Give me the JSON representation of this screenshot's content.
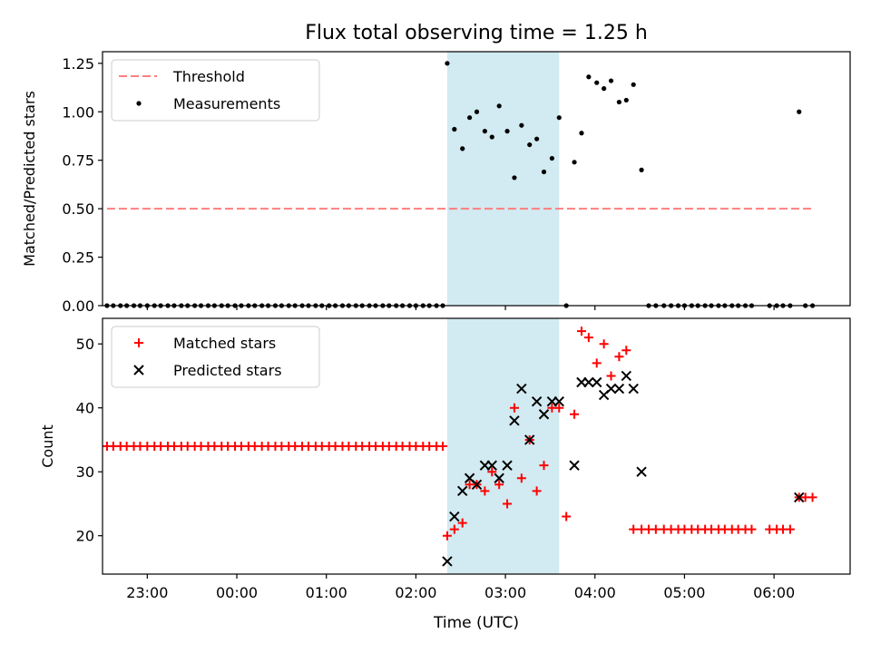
{
  "figure": {
    "title": "Flux total observing time = 1.25 h",
    "xlabel": "Time (UTC)",
    "xlim": [
      -1.5,
      6.85
    ],
    "xticks": [
      {
        "value": -1,
        "label": "23:00"
      },
      {
        "value": 0,
        "label": "00:00"
      },
      {
        "value": 1,
        "label": "01:00"
      },
      {
        "value": 2,
        "label": "02:00"
      },
      {
        "value": 3,
        "label": "03:00"
      },
      {
        "value": 4,
        "label": "04:00"
      },
      {
        "value": 5,
        "label": "05:00"
      },
      {
        "value": 6,
        "label": "06:00"
      }
    ],
    "observing_window": {
      "start": 2.35,
      "end": 3.6,
      "color": "#add8e6"
    }
  },
  "chart_data": [
    {
      "type": "scatter",
      "ylabel": "Matched/Predicted stars",
      "ylim": [
        0,
        1.31
      ],
      "yticks": [
        "0.00",
        "0.25",
        "0.50",
        "0.75",
        "1.00",
        "1.25"
      ],
      "legend_position": "top-left",
      "threshold": {
        "name": "Threshold",
        "value": 0.5,
        "x_range": [
          -1.45,
          6.45
        ],
        "color": "#ff7f7f"
      },
      "series": [
        {
          "name": "Measurements",
          "color": "#000000",
          "x": [
            -1.45,
            -1.38,
            -1.3,
            -1.23,
            -1.15,
            -1.08,
            -1.0,
            -0.92,
            -0.85,
            -0.77,
            -0.7,
            -0.62,
            -0.55,
            -0.47,
            -0.4,
            -0.32,
            -0.25,
            -0.17,
            -0.1,
            -0.02,
            0.05,
            0.13,
            0.2,
            0.28,
            0.35,
            0.43,
            0.5,
            0.58,
            0.65,
            0.73,
            0.8,
            0.88,
            0.95,
            1.03,
            1.1,
            1.18,
            1.25,
            1.33,
            1.4,
            1.48,
            1.55,
            1.63,
            1.7,
            1.78,
            1.85,
            1.93,
            2.0,
            2.08,
            2.15,
            2.23,
            2.3,
            2.35,
            2.43,
            2.52,
            2.6,
            2.68,
            2.77,
            2.85,
            2.93,
            3.02,
            3.1,
            3.18,
            3.27,
            3.35,
            3.43,
            3.52,
            3.6,
            3.68,
            3.77,
            3.85,
            3.93,
            4.02,
            4.1,
            4.18,
            4.27,
            4.35,
            4.43,
            4.52,
            4.6,
            4.68,
            4.77,
            4.85,
            4.93,
            5.0,
            5.08,
            5.15,
            5.23,
            5.3,
            5.38,
            5.45,
            5.53,
            5.6,
            5.68,
            5.75,
            5.95,
            6.03,
            6.1,
            6.18,
            6.28,
            6.35,
            6.43
          ],
          "y": [
            0,
            0,
            0,
            0,
            0,
            0,
            0,
            0,
            0,
            0,
            0,
            0,
            0,
            0,
            0,
            0,
            0,
            0,
            0,
            0,
            0,
            0,
            0,
            0,
            0,
            0,
            0,
            0,
            0,
            0,
            0,
            0,
            0,
            0,
            0,
            0,
            0,
            0,
            0,
            0,
            0,
            0,
            0,
            0,
            0,
            0,
            0,
            0,
            0,
            0,
            0,
            1.25,
            0.91,
            0.81,
            0.97,
            1.0,
            0.9,
            0.87,
            1.03,
            0.9,
            0.66,
            0.93,
            0.83,
            0.86,
            0.69,
            0.76,
            0.97,
            0,
            0.74,
            0.89,
            1.18,
            1.15,
            1.12,
            1.16,
            1.05,
            1.06,
            1.14,
            0.7,
            0,
            0,
            0,
            0,
            0,
            0,
            0,
            0,
            0,
            0,
            0,
            0,
            0,
            0,
            0,
            0,
            0,
            0,
            0,
            0,
            1.0,
            0,
            0
          ]
        }
      ]
    },
    {
      "type": "scatter",
      "ylabel": "Count",
      "ylim": [
        14,
        54
      ],
      "yticks": [
        "20",
        "30",
        "40",
        "50"
      ],
      "legend_position": "top-left",
      "series": [
        {
          "name": "Matched stars",
          "marker": "plus",
          "color": "#ff0000",
          "x": [
            -1.45,
            -1.38,
            -1.3,
            -1.23,
            -1.15,
            -1.08,
            -1.0,
            -0.92,
            -0.85,
            -0.77,
            -0.7,
            -0.62,
            -0.55,
            -0.47,
            -0.4,
            -0.32,
            -0.25,
            -0.17,
            -0.1,
            -0.02,
            0.05,
            0.13,
            0.2,
            0.28,
            0.35,
            0.43,
            0.5,
            0.58,
            0.65,
            0.73,
            0.8,
            0.88,
            0.95,
            1.03,
            1.1,
            1.18,
            1.25,
            1.33,
            1.4,
            1.48,
            1.55,
            1.63,
            1.7,
            1.78,
            1.85,
            1.93,
            2.0,
            2.08,
            2.15,
            2.23,
            2.3,
            2.35,
            2.43,
            2.52,
            2.6,
            2.68,
            2.77,
            2.85,
            2.93,
            3.02,
            3.1,
            3.18,
            3.27,
            3.35,
            3.43,
            3.52,
            3.6,
            3.68,
            3.77,
            3.85,
            3.93,
            4.02,
            4.1,
            4.18,
            4.27,
            4.35,
            4.43,
            4.52,
            4.6,
            4.68,
            4.77,
            4.85,
            4.93,
            5.0,
            5.08,
            5.15,
            5.23,
            5.3,
            5.38,
            5.45,
            5.53,
            5.6,
            5.68,
            5.75,
            5.95,
            6.03,
            6.1,
            6.18,
            6.28,
            6.35,
            6.43
          ],
          "y": [
            34,
            34,
            34,
            34,
            34,
            34,
            34,
            34,
            34,
            34,
            34,
            34,
            34,
            34,
            34,
            34,
            34,
            34,
            34,
            34,
            34,
            34,
            34,
            34,
            34,
            34,
            34,
            34,
            34,
            34,
            34,
            34,
            34,
            34,
            34,
            34,
            34,
            34,
            34,
            34,
            34,
            34,
            34,
            34,
            34,
            34,
            34,
            34,
            34,
            34,
            34,
            20,
            21,
            22,
            28,
            28,
            27,
            30,
            28,
            25,
            40,
            29,
            35,
            27,
            31,
            40,
            40,
            23,
            39,
            52,
            51,
            47,
            50,
            45,
            48,
            49,
            21,
            21,
            21,
            21,
            21,
            21,
            21,
            21,
            21,
            21,
            21,
            21,
            21,
            21,
            21,
            21,
            21,
            21,
            21,
            21,
            21,
            21,
            26,
            26,
            26
          ]
        },
        {
          "name": "Predicted stars",
          "marker": "x",
          "color": "#000000",
          "x": [
            2.35,
            2.43,
            2.52,
            2.6,
            2.68,
            2.77,
            2.85,
            2.93,
            3.02,
            3.1,
            3.18,
            3.27,
            3.35,
            3.43,
            3.52,
            3.6,
            3.77,
            3.85,
            3.93,
            4.02,
            4.1,
            4.18,
            4.27,
            4.35,
            4.43,
            4.52,
            6.28
          ],
          "y": [
            16,
            23,
            27,
            29,
            28,
            31,
            31,
            29,
            31,
            38,
            43,
            35,
            41,
            39,
            41,
            41,
            31,
            44,
            44,
            44,
            42,
            43,
            43,
            45,
            43,
            30,
            26
          ]
        }
      ]
    }
  ]
}
